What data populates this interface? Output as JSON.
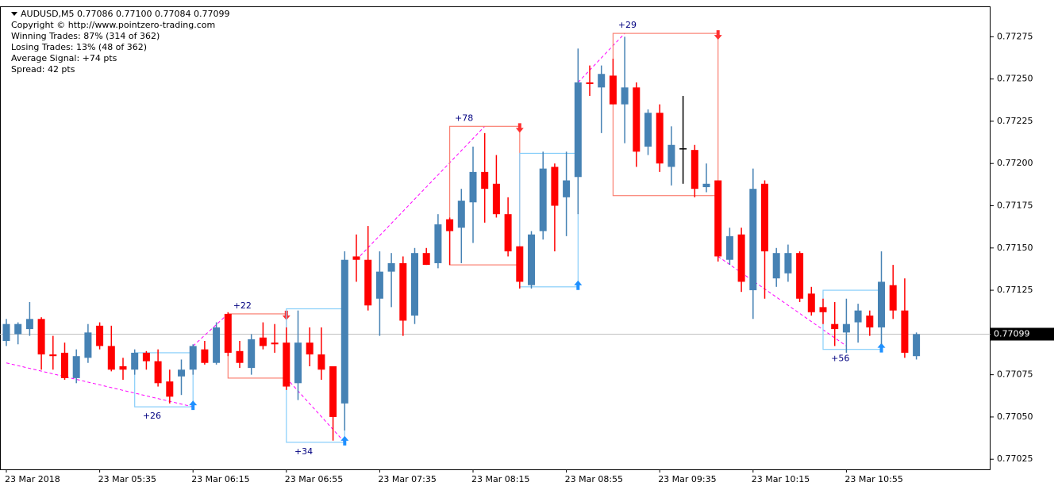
{
  "chart_data": {
    "type": "candlestick",
    "title": "AUDUSD,M5  0.77086 0.77100 0.77084 0.77099",
    "info": [
      "Copyright © http://www.pointzero-trading.com",
      "Winning Trades: 87% (314 of 362)",
      "Losing Trades: 13% (48 of 362)",
      "Average Signal: +74 pts",
      "Spread: 42 pts"
    ],
    "bull_color": "#4682b4",
    "bear_color": "#ff0000",
    "doji_color": "#000000",
    "open": [
      0.77095,
      0.77099,
      0.77102,
      0.77108,
      0.77087,
      0.77088,
      0.77073,
      0.77085,
      0.77104,
      0.77092,
      0.7708,
      0.77078,
      0.77088,
      0.77083,
      0.77071,
      0.77074,
      0.77078,
      0.7709,
      0.77082,
      0.77111,
      0.77089,
      0.77079,
      0.77097,
      0.77094,
      0.77094,
      0.7707,
      0.77094,
      0.77087,
      0.7708,
      0.77058,
      0.77145,
      0.77143,
      0.7712,
      0.77136,
      0.77141,
      0.7711,
      0.77147,
      0.77141,
      0.77167,
      0.77162,
      0.77177,
      0.77195,
      0.77188,
      0.7717,
      0.77151,
      0.77128,
      0.7716,
      0.77198,
      0.7718,
      0.77192,
      0.77248,
      0.77245,
      0.77252,
      0.77235,
      0.77245,
      0.7721,
      0.7723,
      0.77198,
      0.77209,
      0.77208,
      0.77186,
      0.7719,
      0.77143,
      0.77158,
      0.77125,
      0.77188,
      0.77132,
      0.77135,
      0.77147,
      0.77123,
      0.77115,
      0.77105,
      0.771,
      0.77106,
      0.7711,
      0.77103,
      0.77128,
      0.77113,
      0.77086
    ],
    "high": [
      0.77108,
      0.77106,
      0.77118,
      0.77109,
      0.77098,
      0.77094,
      0.7709,
      0.77105,
      0.77106,
      0.77104,
      0.77085,
      0.7709,
      0.77089,
      0.7709,
      0.77078,
      0.77084,
      0.77093,
      0.77095,
      0.77106,
      0.77112,
      0.77095,
      0.77099,
      0.77106,
      0.77105,
      0.77103,
      0.77113,
      0.77103,
      0.77103,
      0.7708,
      0.77148,
      0.77158,
      0.77163,
      0.77148,
      0.77147,
      0.77145,
      0.7715,
      0.7715,
      0.7717,
      0.77168,
      0.77185,
      0.7721,
      0.77218,
      0.77205,
      0.7718,
      0.77151,
      0.7716,
      0.77207,
      0.772,
      0.77207,
      0.77268,
      0.77258,
      0.77258,
      0.77262,
      0.77275,
      0.77248,
      0.77232,
      0.77235,
      0.77222,
      0.7724,
      0.77211,
      0.772,
      0.7719,
      0.77162,
      0.77162,
      0.77197,
      0.7719,
      0.7715,
      0.77152,
      0.77148,
      0.77127,
      0.7712,
      0.77118,
      0.7712,
      0.77117,
      0.77113,
      0.77148,
      0.7714,
      0.77132,
      0.771
    ],
    "low": [
      0.77092,
      0.77093,
      0.77098,
      0.77078,
      0.77078,
      0.77072,
      0.7707,
      0.77082,
      0.7709,
      0.77077,
      0.77072,
      0.77075,
      0.77078,
      0.77068,
      0.77058,
      0.77063,
      0.77075,
      0.77081,
      0.77081,
      0.77086,
      0.77079,
      0.77075,
      0.7709,
      0.77088,
      0.77066,
      0.7706,
      0.7708,
      0.77072,
      0.77036,
      0.77042,
      0.7713,
      0.77113,
      0.77098,
      0.77115,
      0.77098,
      0.77105,
      0.7714,
      0.77138,
      0.7714,
      0.77141,
      0.77153,
      0.77165,
      0.77168,
      0.77145,
      0.77126,
      0.77126,
      0.77155,
      0.77148,
      0.77157,
      0.7717,
      0.7724,
      0.77218,
      0.77235,
      0.77212,
      0.77198,
      0.77205,
      0.77195,
      0.77187,
      0.77188,
      0.7718,
      0.77183,
      0.77142,
      0.7714,
      0.77124,
      0.77108,
      0.7712,
      0.77127,
      0.7713,
      0.77118,
      0.7711,
      0.77105,
      0.77092,
      0.77088,
      0.77094,
      0.77098,
      0.77093,
      0.77108,
      0.77085,
      0.77084
    ],
    "close": [
      0.77105,
      0.77105,
      0.77108,
      0.77087,
      0.77086,
      0.77073,
      0.77086,
      0.771,
      0.77092,
      0.77078,
      0.77078,
      0.77088,
      0.77083,
      0.7707,
      0.77062,
      0.77078,
      0.77092,
      0.77082,
      0.77103,
      0.77088,
      0.77082,
      0.77096,
      0.77092,
      0.77093,
      0.77068,
      0.77094,
      0.77087,
      0.77078,
      0.7705,
      0.77143,
      0.77143,
      0.77116,
      0.77136,
      0.77141,
      0.77107,
      0.77147,
      0.7714,
      0.77164,
      0.7716,
      0.77178,
      0.77195,
      0.77185,
      0.7717,
      0.77148,
      0.7713,
      0.77158,
      0.77197,
      0.77175,
      0.7719,
      0.77248,
      0.77247,
      0.77253,
      0.77235,
      0.77245,
      0.77207,
      0.7723,
      0.772,
      0.77211,
      0.77209,
      0.77185,
      0.77188,
      0.77145,
      0.77157,
      0.7713,
      0.77185,
      0.77148,
      0.77147,
      0.77147,
      0.7712,
      0.77112,
      0.77112,
      0.77102,
      0.77105,
      0.77113,
      0.77103,
      0.7713,
      0.77113,
      0.77088,
      0.77099
    ],
    "current_price": 0.77099,
    "ylim": [
      0.77019,
      0.77293
    ],
    "yticks": [
      {
        "value": 0.77025,
        "label": "0.77025"
      },
      {
        "value": 0.7705,
        "label": "0.77050"
      },
      {
        "value": 0.77075,
        "label": "0.77075"
      },
      {
        "value": 0.771,
        "label": "0.77100"
      },
      {
        "value": 0.77125,
        "label": "0.77125"
      },
      {
        "value": 0.7715,
        "label": "0.77150"
      },
      {
        "value": 0.77175,
        "label": "0.77175"
      },
      {
        "value": 0.772,
        "label": "0.77200"
      },
      {
        "value": 0.77225,
        "label": "0.77225"
      },
      {
        "value": 0.7725,
        "label": "0.77250"
      },
      {
        "value": 0.77275,
        "label": "0.77275"
      }
    ],
    "xticks": [
      {
        "value": 0,
        "label": "23 Mar 2018"
      },
      {
        "value": 8,
        "label": "23 Mar 05:35"
      },
      {
        "value": 16,
        "label": "23 Mar 06:15"
      },
      {
        "value": 24,
        "label": "23 Mar 06:55"
      },
      {
        "value": 32,
        "label": "23 Mar 07:35"
      },
      {
        "value": 40,
        "label": "23 Mar 08:15"
      },
      {
        "value": 48,
        "label": "23 Mar 08:55"
      },
      {
        "value": 56,
        "label": "23 Mar 09:35"
      },
      {
        "value": 64,
        "label": "23 Mar 10:15"
      },
      {
        "value": 72,
        "label": "23 Mar 10:55"
      }
    ],
    "signals": [
      {
        "kind": "buy",
        "from": 11,
        "to": 16,
        "top": 0.77088,
        "bottom": 0.77056,
        "label": "+26"
      },
      {
        "kind": "sell",
        "from": 19,
        "to": 24,
        "top": 0.77111,
        "bottom": 0.77073,
        "label": "+22"
      },
      {
        "kind": "buy",
        "from": 24,
        "to": 29,
        "top": 0.77114,
        "bottom": 0.77035,
        "label": "+34"
      },
      {
        "kind": "sell",
        "from": 38,
        "to": 44,
        "top": 0.77222,
        "bottom": 0.7714,
        "label": "+78"
      },
      {
        "kind": "buy",
        "from": 44,
        "to": 49,
        "top": 0.77206,
        "bottom": 0.77127
      },
      {
        "kind": "sell",
        "from": 52,
        "to": 61,
        "top": 0.77277,
        "bottom": 0.77181,
        "label": "+29"
      },
      {
        "kind": "buy",
        "from": 70,
        "to": 75,
        "top": 0.77125,
        "bottom": 0.7709,
        "label": "+56"
      }
    ],
    "trend_lines": [
      {
        "from": [
          0,
          0.77082
        ],
        "to": [
          16,
          0.77056
        ]
      },
      {
        "from": [
          16,
          0.77092
        ],
        "to": [
          19,
          0.77111
        ]
      },
      {
        "from": [
          24,
          0.77073
        ],
        "to": [
          29,
          0.77035
        ]
      },
      {
        "from": [
          30,
          0.77143
        ],
        "to": [
          41,
          0.77222
        ]
      },
      {
        "from": [
          49,
          0.77248
        ],
        "to": [
          53,
          0.77277
        ]
      },
      {
        "from": [
          61,
          0.77145
        ],
        "to": [
          72,
          0.77092
        ]
      }
    ]
  }
}
